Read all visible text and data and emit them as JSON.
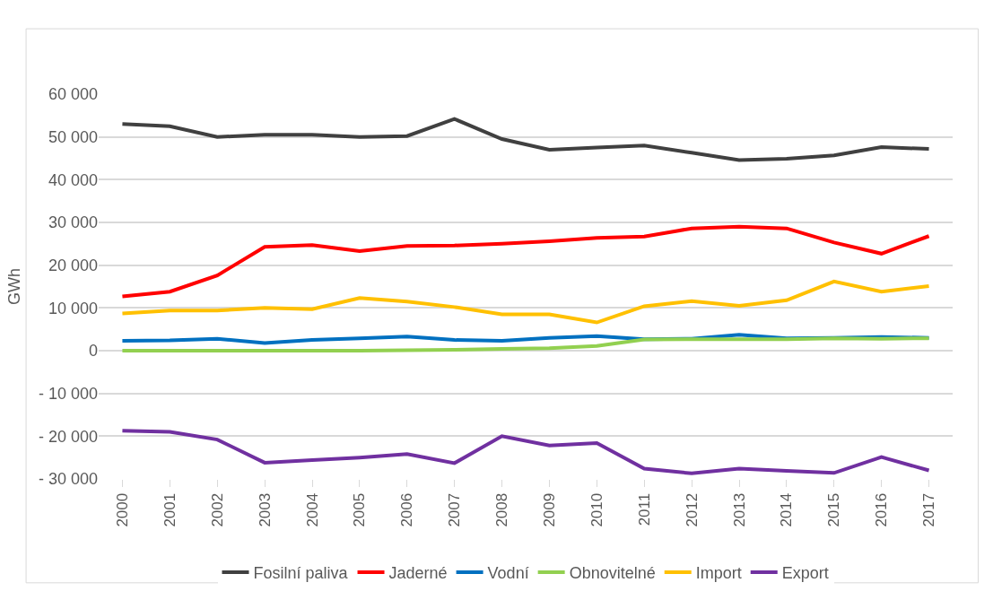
{
  "chart_data": {
    "type": "line",
    "ylabel": "GWh",
    "categories": [
      "2000",
      "2001",
      "2002",
      "2003",
      "2004",
      "2005",
      "2006",
      "2007",
      "2008",
      "2009",
      "2010",
      "2011",
      "2012",
      "2013",
      "2014",
      "2015",
      "2016",
      "2017"
    ],
    "ylim": [
      -30000,
      60000
    ],
    "yticks": [
      {
        "value": -30000,
        "label": "- 30 000"
      },
      {
        "value": -20000,
        "label": "- 20 000"
      },
      {
        "value": -10000,
        "label": "- 10 000"
      },
      0,
      {
        "value": 10000,
        "label": "10 000"
      },
      {
        "value": 20000,
        "label": "20 000"
      },
      {
        "value": 30000,
        "label": "30 000"
      },
      {
        "value": 40000,
        "label": "40 000"
      },
      {
        "value": 50000,
        "label": "50 000"
      },
      {
        "value": 60000,
        "label": "60 000"
      }
    ],
    "grid": "y",
    "legend": "bottom",
    "marker": "none",
    "line_style": "solid",
    "series": [
      {
        "name": "Fosilní paliva",
        "color": "#404040",
        "values": [
          53000,
          52500,
          50000,
          50500,
          50500,
          50000,
          50200,
          54200,
          49500,
          47000,
          47500,
          48000,
          46300,
          44600,
          44900,
          45700,
          47600,
          47200
        ]
      },
      {
        "name": "Jaderné",
        "color": "#ff0000",
        "values": [
          12700,
          13800,
          17600,
          24300,
          24700,
          23300,
          24500,
          24600,
          25000,
          25600,
          26400,
          26700,
          28600,
          29000,
          28600,
          25300,
          22700,
          26800
        ]
      },
      {
        "name": "Vodní",
        "color": "#0070c0",
        "values": [
          2300,
          2400,
          2800,
          1800,
          2500,
          2900,
          3300,
          2500,
          2300,
          3000,
          3400,
          2700,
          2800,
          3700,
          2900,
          3000,
          3200,
          3000
        ]
      },
      {
        "name": "Obnovitelné",
        "color": "#92d050",
        "values": [
          0,
          0,
          0,
          0,
          0,
          0,
          100,
          200,
          400,
          600,
          1100,
          2600,
          2700,
          2700,
          2700,
          2900,
          2800,
          2900
        ]
      },
      {
        "name": "Import",
        "color": "#ffc000",
        "values": [
          8700,
          9400,
          9400,
          10000,
          9700,
          12300,
          11500,
          10200,
          8500,
          8500,
          6600,
          10400,
          11600,
          10500,
          11800,
          16200,
          13800,
          15100
        ]
      },
      {
        "name": "Export",
        "color": "#7030a0",
        "values": [
          -18700,
          -19000,
          -20800,
          -26200,
          -25600,
          -25000,
          -24200,
          -26300,
          -20000,
          -22200,
          -21600,
          -27600,
          -28700,
          -27600,
          -28100,
          -28600,
          -24900,
          -28000
        ]
      }
    ]
  }
}
